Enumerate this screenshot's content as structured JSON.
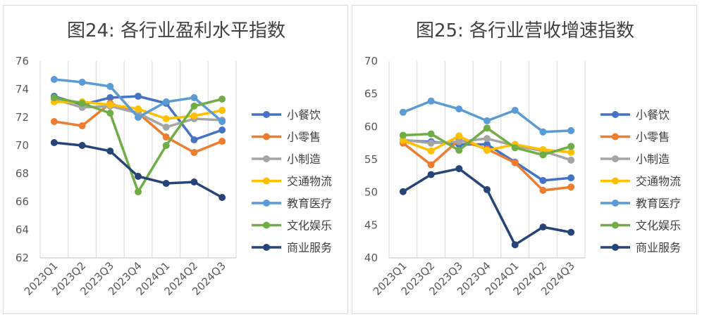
{
  "chart_data": [
    {
      "type": "line",
      "title": "图24: 各行业盈利水平指数",
      "categories": [
        "2023Q1",
        "2023Q2",
        "2023Q3",
        "2023Q4",
        "2024Q1",
        "2024Q2",
        "2024Q3"
      ],
      "ylim": [
        62,
        76
      ],
      "yticks": [
        62,
        64,
        66,
        68,
        70,
        72,
        74,
        76
      ],
      "grid": "vertical",
      "legend_position": "right",
      "series": [
        {
          "name": "小餐饮",
          "color": "#4472C4",
          "values": [
            73.5,
            72.9,
            73.4,
            73.5,
            73.0,
            70.4,
            71.1
          ]
        },
        {
          "name": "小零售",
          "color": "#ED7D31",
          "values": [
            71.7,
            71.4,
            73.0,
            72.3,
            70.6,
            69.5,
            70.3
          ]
        },
        {
          "name": "小制造",
          "color": "#A5A5A5",
          "values": [
            73.3,
            72.7,
            72.8,
            72.3,
            71.3,
            71.9,
            71.8
          ]
        },
        {
          "name": "交通物流",
          "color": "#FFC000",
          "values": [
            73.1,
            73.1,
            72.9,
            72.6,
            71.9,
            72.1,
            72.5
          ]
        },
        {
          "name": "教育医疗",
          "color": "#5B9BD5",
          "values": [
            74.7,
            74.5,
            74.2,
            72.0,
            73.1,
            73.4,
            71.7
          ]
        },
        {
          "name": "文化娱乐",
          "color": "#70AD47",
          "values": [
            73.4,
            73.0,
            72.3,
            66.7,
            70.0,
            72.8,
            73.3
          ]
        },
        {
          "name": "商业服务",
          "color": "#264478",
          "values": [
            70.2,
            70.0,
            69.6,
            67.8,
            67.3,
            67.4,
            66.3
          ]
        }
      ]
    },
    {
      "type": "line",
      "title": "图25: 各行业营收增速指数",
      "categories": [
        "2023Q1",
        "2023Q2",
        "2023Q3",
        "2023Q4",
        "2024Q1",
        "2024Q2",
        "2024Q3"
      ],
      "ylim": [
        40,
        70
      ],
      "yticks": [
        40,
        45,
        50,
        55,
        60,
        65,
        70
      ],
      "grid": "vertical",
      "legend_position": "right",
      "series": [
        {
          "name": "小餐饮",
          "color": "#4472C4",
          "values": [
            57.9,
            57.7,
            57.3,
            57.3,
            54.6,
            51.8,
            52.2
          ]
        },
        {
          "name": "小零售",
          "color": "#ED7D31",
          "values": [
            57.5,
            54.2,
            58.0,
            56.6,
            54.5,
            50.3,
            50.8
          ]
        },
        {
          "name": "小制造",
          "color": "#A5A5A5",
          "values": [
            58.0,
            57.5,
            57.7,
            58.2,
            57.1,
            56.3,
            54.9
          ]
        },
        {
          "name": "交通物流",
          "color": "#FFC000",
          "values": [
            57.9,
            56.3,
            58.6,
            56.4,
            57.3,
            56.5,
            56.1
          ]
        },
        {
          "name": "教育医疗",
          "color": "#5B9BD5",
          "values": [
            62.2,
            63.9,
            62.7,
            60.9,
            62.5,
            59.2,
            59.4
          ]
        },
        {
          "name": "文化娱乐",
          "color": "#70AD47",
          "values": [
            58.7,
            58.9,
            56.4,
            59.8,
            56.8,
            55.7,
            57.0
          ]
        },
        {
          "name": "商业服务",
          "color": "#264478",
          "values": [
            50.1,
            52.7,
            53.6,
            50.4,
            42.0,
            44.7,
            43.9
          ]
        }
      ]
    }
  ]
}
